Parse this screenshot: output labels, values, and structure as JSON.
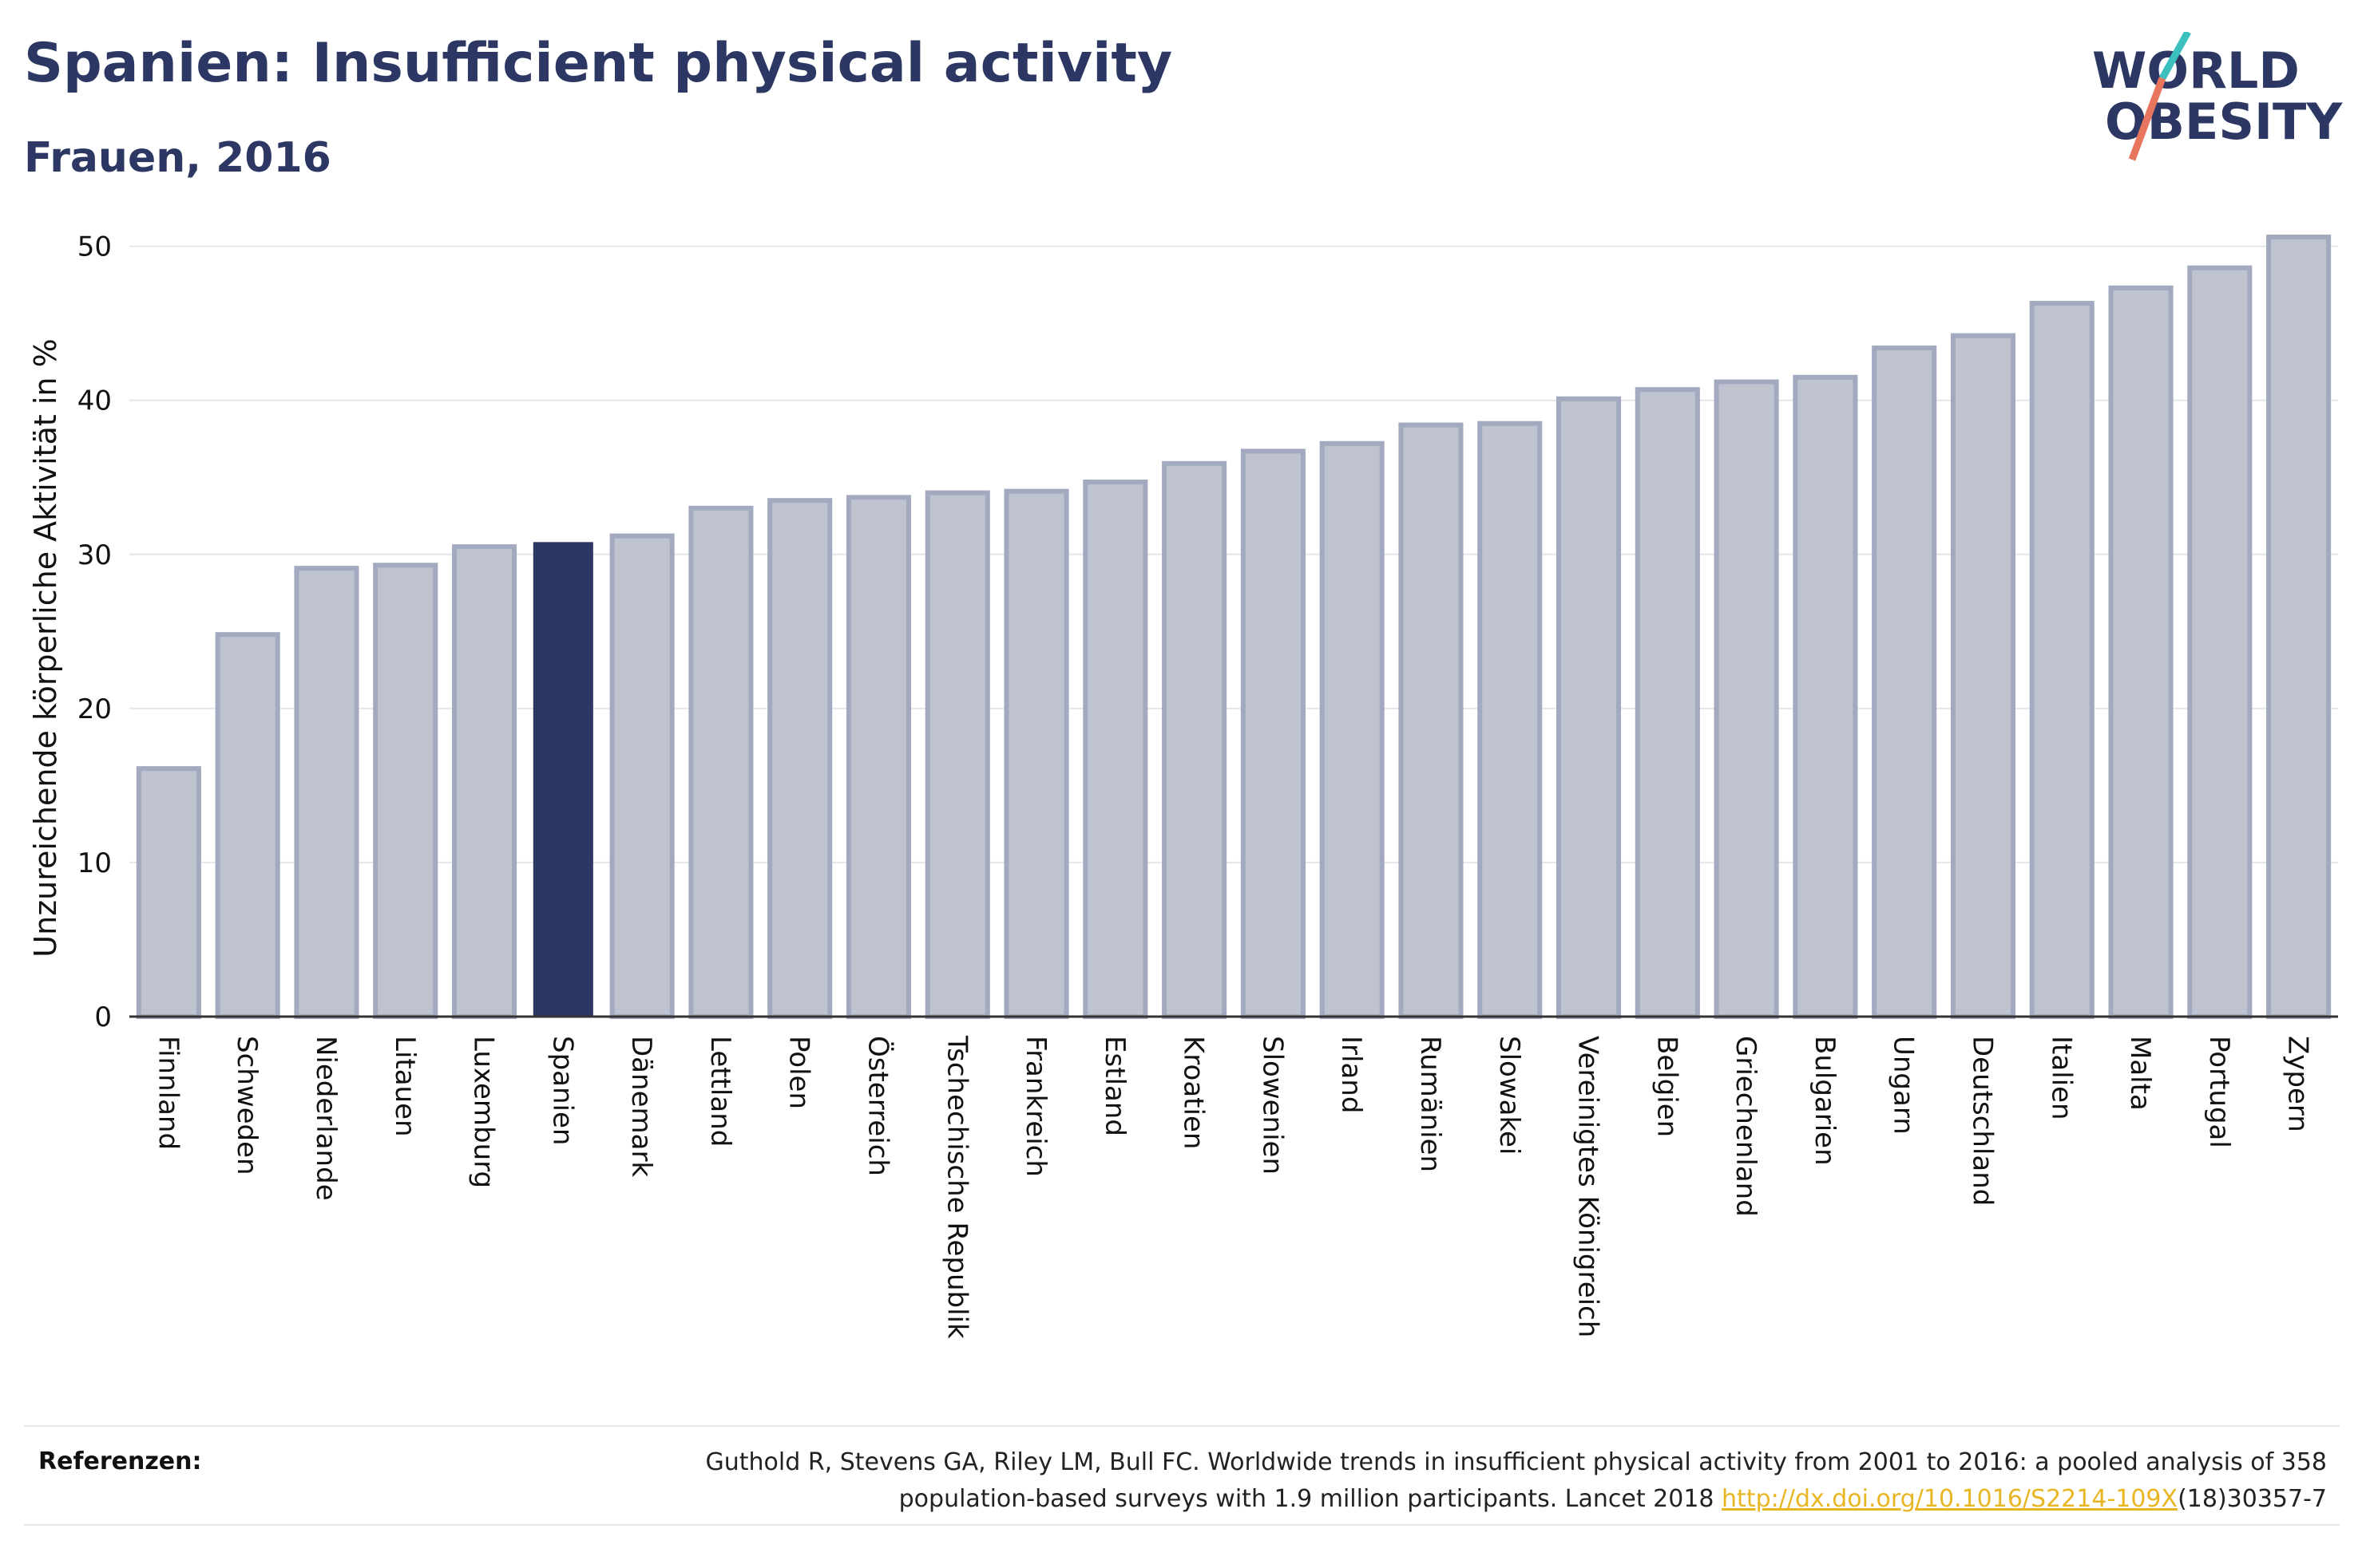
{
  "header": {
    "title": "Spanien: Insufficient physical activity",
    "subtitle": "Frauen, 2016"
  },
  "logo": {
    "line1": "WORLD",
    "line2": "OBESITY",
    "icon": "world-obesity-logo"
  },
  "colors": {
    "highlight_bar": "#2c3763",
    "default_bar": "#bfc3d0",
    "default_bar_stroke": "#a3a9bf",
    "text": "#2c3763",
    "link": "#e9b623",
    "logo_teal": "#3bbfbf",
    "logo_coral": "#e8765f"
  },
  "chart_data": {
    "type": "bar",
    "title": "Spanien: Insufficient physical activity",
    "subtitle": "Frauen, 2016",
    "ylabel": "Unzureichende körperliche Aktivität in %",
    "xlabel": "",
    "ylim": [
      0,
      52
    ],
    "yticks": [
      0,
      10,
      20,
      30,
      40,
      50
    ],
    "grid": true,
    "highlight": "Spanien",
    "categories": [
      "Finnland",
      "Schweden",
      "Niederlande",
      "Litauen",
      "Luxemburg",
      "Spanien",
      "Dänemark",
      "Lettland",
      "Polen",
      "Österreich",
      "Tschechische Republik",
      "Frankreich",
      "Estland",
      "Kroatien",
      "Slowenien",
      "Irland",
      "Rumänien",
      "Slowakei",
      "Vereinigtes Königreich",
      "Belgien",
      "Griechenland",
      "Bulgarien",
      "Ungarn",
      "Deutschland",
      "Italien",
      "Malta",
      "Portugal",
      "Zypern"
    ],
    "values": [
      16.1,
      24.8,
      29.1,
      29.3,
      30.5,
      30.8,
      31.2,
      33.0,
      33.5,
      33.7,
      34.0,
      34.1,
      34.7,
      35.9,
      36.7,
      37.2,
      38.4,
      38.5,
      40.1,
      40.7,
      41.2,
      41.5,
      43.4,
      44.2,
      46.3,
      47.3,
      48.6,
      50.6
    ]
  },
  "references": {
    "label": "Referenzen:",
    "text_line1": "Guthold R, Stevens GA, Riley LM, Bull FC. Worldwide trends in insufficient physical activity from 2001 to 2016: a pooled analysis of 358",
    "text_line2_prefix": "population-based surveys with 1.9 million participants. Lancet 2018 ",
    "link": "http://dx.doi.org/10.1016/S2214-109X",
    "text_line2_suffix": "(18)30357-7"
  }
}
